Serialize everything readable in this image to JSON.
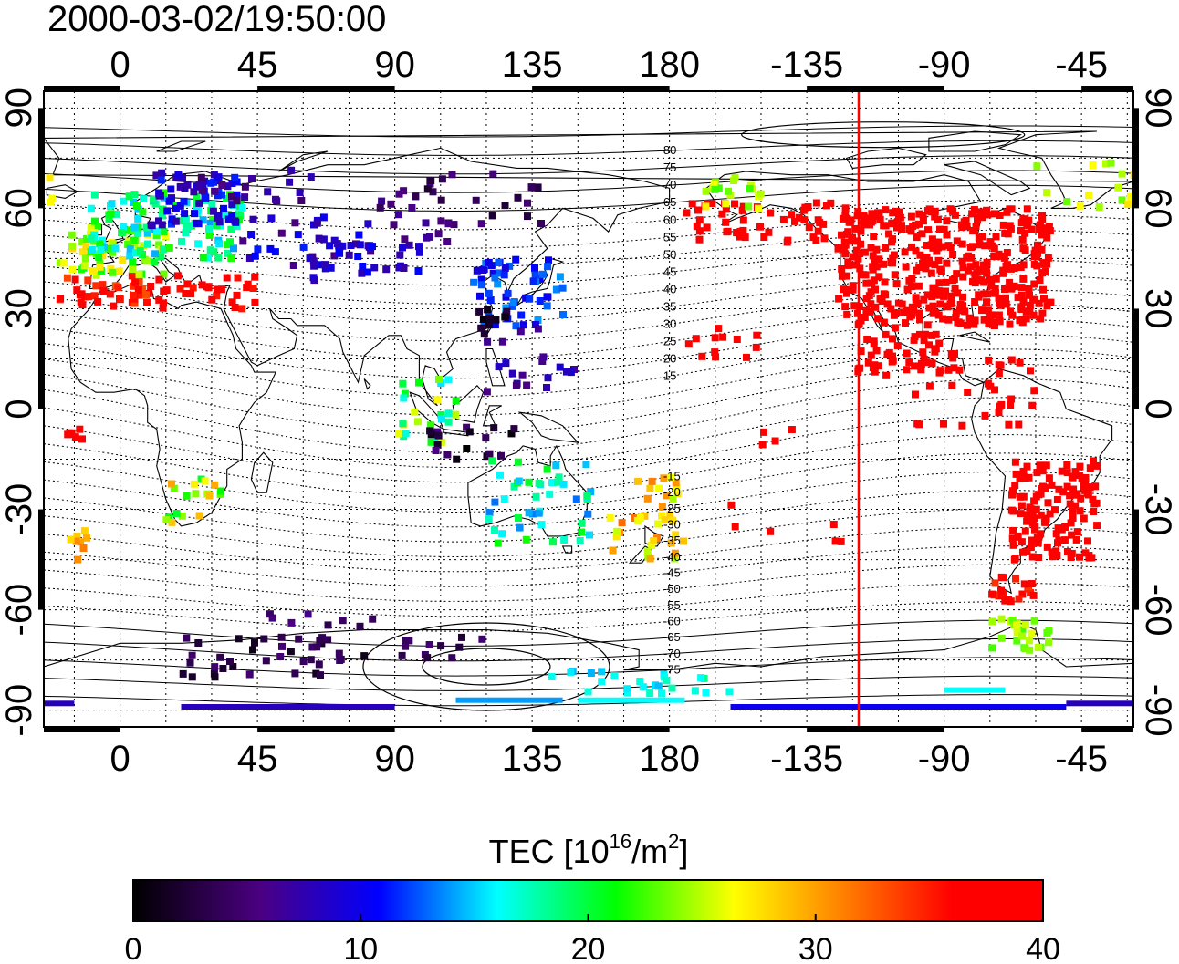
{
  "timestamp": "2000-03-02/19:50:00",
  "map": {
    "top_lon_ticks": [
      "0",
      "45",
      "90",
      "135",
      "180",
      "-135",
      "-90",
      "-45"
    ],
    "bottom_lon_ticks": [
      "0",
      "45",
      "90",
      "135",
      "180",
      "-135",
      "-90",
      "-45"
    ],
    "left_lat_ticks": [
      "90",
      "60",
      "30",
      "0",
      "-30",
      "-60",
      "-90"
    ],
    "right_lat_ticks": [
      "90",
      "60",
      "30",
      "0",
      "-30",
      "-60",
      "-90"
    ],
    "lon_range": [
      -25,
      332
    ],
    "lat_range": [
      -95,
      95
    ],
    "gridlines": "dotted every 15 degrees",
    "terminator_longitude": -118,
    "terminator_color": "#ff0000",
    "contour_labels": [
      "80",
      "75",
      "70",
      "65",
      "60",
      "55",
      "50",
      "45",
      "40",
      "35",
      "30",
      "25",
      "20",
      "15",
      "-15",
      "-20",
      "-25",
      "-30",
      "-35",
      "-40",
      "-45",
      "-50",
      "-55",
      "-60",
      "-65",
      "-70",
      "-75"
    ]
  },
  "colorbar": {
    "title_prefix": "TEC  [10",
    "title_sup1": "16",
    "title_mid": "/m",
    "title_sup2": "2",
    "title_suffix": "]",
    "tick_labels": [
      "0",
      "10",
      "20",
      "30",
      "40"
    ],
    "range": [
      0,
      40
    ],
    "colors": [
      "#000000",
      "#4b0082",
      "#0000ff",
      "#00ffff",
      "#00ff00",
      "#ffff00",
      "#ff8000",
      "#ff0000"
    ]
  }
}
